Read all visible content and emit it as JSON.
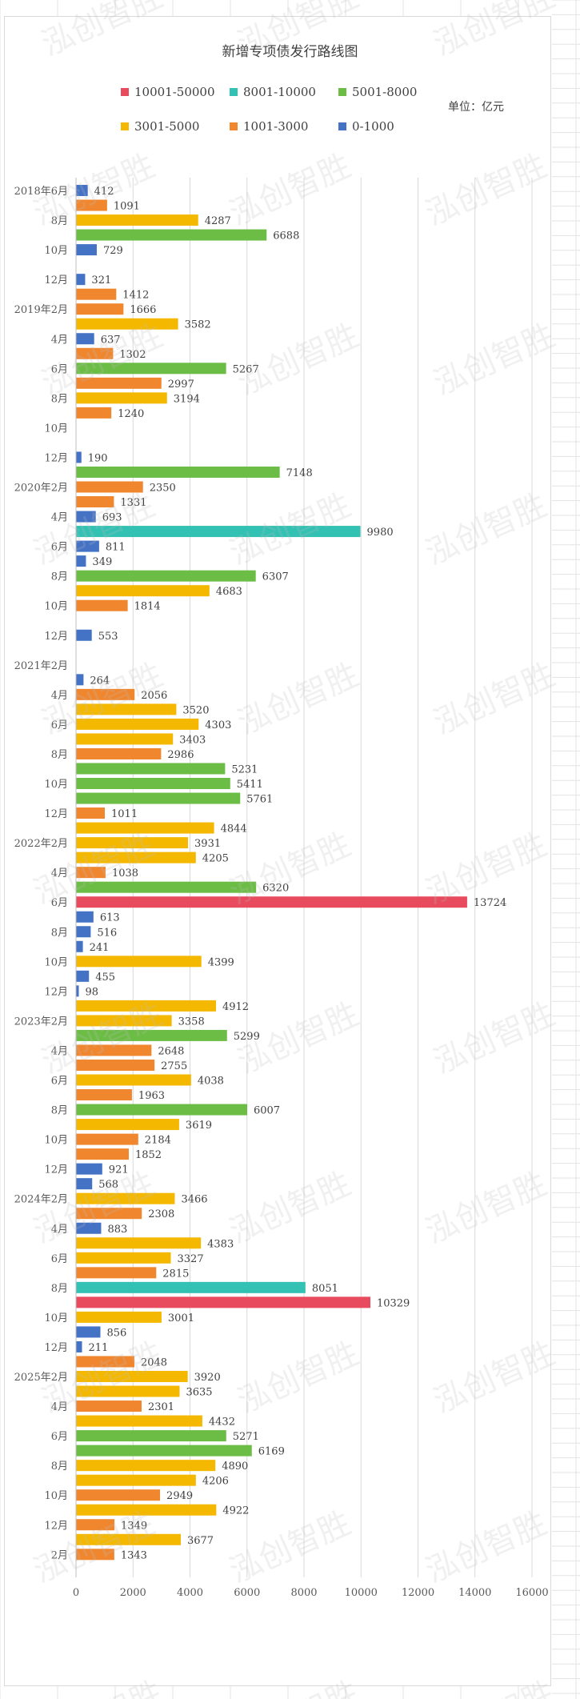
{
  "watermark": "泓创智胜",
  "colors": {
    "10001-50000": "#e84b5e",
    "8001-10000": "#32c1b3",
    "5001-8000": "#6cbd45",
    "3001-5000": "#f5b800",
    "1001-3000": "#f0862d",
    "0-1000": "#4472c4"
  },
  "chart_data": {
    "type": "bar",
    "orientation": "horizontal",
    "title": "新增专项债发行路线图",
    "unit": "单位：亿元",
    "xlim": [
      0,
      16000
    ],
    "xticks": [
      0,
      2000,
      4000,
      6000,
      8000,
      10000,
      12000,
      14000,
      16000
    ],
    "grid": "vertical",
    "legend_position": "top",
    "legend": [
      {
        "name": "10001-50000",
        "color": "#e84b5e"
      },
      {
        "name": "8001-10000",
        "color": "#32c1b3"
      },
      {
        "name": "5001-8000",
        "color": "#6cbd45"
      },
      {
        "name": "3001-5000",
        "color": "#f5b800"
      },
      {
        "name": "1001-3000",
        "color": "#f0862d"
      },
      {
        "name": "0-1000",
        "color": "#4472c4"
      }
    ],
    "category_labels": [
      "2018年6月",
      "8月",
      "10月",
      "12月",
      "2019年2月",
      "4月",
      "6月",
      "8月",
      "10月",
      "12月",
      "2020年2月",
      "4月",
      "6月",
      "8月",
      "10月",
      "12月",
      "2021年2月",
      "4月",
      "6月",
      "8月",
      "10月",
      "12月",
      "2022年2月",
      "4月",
      "6月",
      "8月",
      "10月",
      "12月",
      "2023年2月",
      "4月",
      "6月",
      "8月",
      "10月",
      "12月",
      "2024年2月",
      "4月",
      "6月",
      "8月",
      "10月",
      "12月",
      "2025年2月",
      "4月",
      "6月",
      "8月",
      "10月",
      "12月",
      "2月"
    ],
    "values": [
      412,
      1091,
      4287,
      6688,
      729,
      null,
      321,
      1412,
      1666,
      3582,
      637,
      1302,
      5267,
      2997,
      3194,
      1240,
      null,
      null,
      190,
      7148,
      2350,
      1331,
      693,
      9980,
      811,
      349,
      6307,
      4683,
      1814,
      null,
      553,
      null,
      null,
      264,
      2056,
      3520,
      4303,
      3403,
      2986,
      5231,
      5411,
      5761,
      1011,
      4844,
      3931,
      4205,
      1038,
      6320,
      13724,
      613,
      516,
      241,
      4399,
      455,
      98,
      4912,
      3358,
      5299,
      2648,
      2755,
      4038,
      1963,
      6007,
      3619,
      2184,
      1852,
      921,
      568,
      3466,
      2308,
      883,
      4383,
      3327,
      2815,
      8051,
      10329,
      3001,
      856,
      211,
      2048,
      3920,
      3635,
      2301,
      4432,
      5271,
      6169,
      4890,
      4206,
      2949,
      4922,
      1349,
      3677,
      1343
    ]
  }
}
